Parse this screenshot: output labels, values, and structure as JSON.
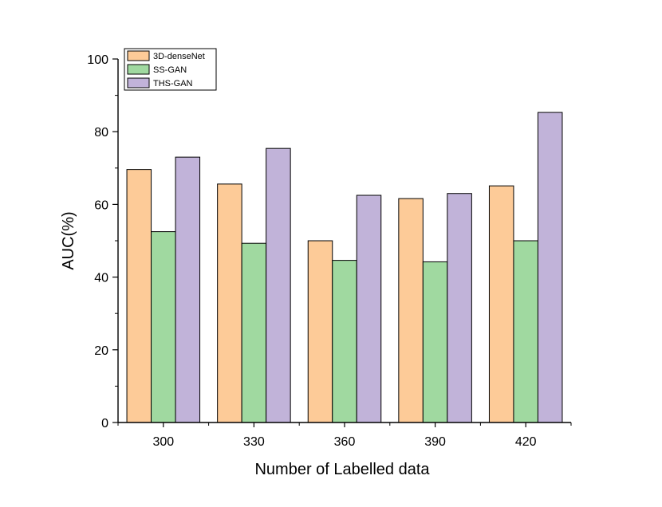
{
  "chart_data": {
    "type": "bar",
    "title": "",
    "xlabel": "Number of Labelled data",
    "ylabel": "AUC(%)",
    "ylim": [
      0,
      100
    ],
    "yticks": [
      0,
      20,
      40,
      60,
      80,
      100
    ],
    "categories": [
      "300",
      "330",
      "360",
      "390",
      "420"
    ],
    "series": [
      {
        "name": "3D-denseNet",
        "color": "#fdcb98",
        "values": [
          69.6,
          65.6,
          50.0,
          61.6,
          65.1
        ]
      },
      {
        "name": "SS-GAN",
        "color": "#a0d9a0",
        "values": [
          52.5,
          49.3,
          44.6,
          44.2,
          50.0
        ]
      },
      {
        "name": "THS-GAN",
        "color": "#c1b3d9",
        "values": [
          73.0,
          75.4,
          62.5,
          63.0,
          85.3
        ]
      }
    ],
    "grid": false,
    "legend": "top-left"
  }
}
